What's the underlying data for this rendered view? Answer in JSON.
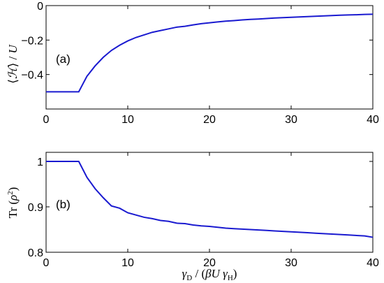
{
  "chart_data": [
    {
      "type": "line",
      "panel_label": "(a)",
      "ylabel": "⟨ℋ⟩ / U",
      "xlabel": "",
      "xlim": [
        0,
        40
      ],
      "ylim": [
        -0.6,
        0
      ],
      "xticks": [
        "0",
        "10",
        "20",
        "30",
        "40"
      ],
      "yticks": [
        "0",
        "−0.2",
        "−0.4"
      ],
      "ytick_values": [
        0,
        -0.2,
        -0.4
      ],
      "xtick_values": [
        0,
        10,
        20,
        30,
        40
      ],
      "color": "#1a1ad0",
      "x": [
        0,
        1,
        2,
        3,
        4,
        5,
        6,
        7,
        8,
        9,
        10,
        11,
        12,
        13,
        14,
        15,
        16,
        17,
        18,
        19,
        20,
        21,
        22,
        23,
        24,
        25,
        26,
        27,
        28,
        29,
        30,
        31,
        32,
        33,
        34,
        35,
        36,
        37,
        38,
        39,
        40
      ],
      "values": [
        -0.5,
        -0.5,
        -0.5,
        -0.5,
        -0.5,
        -0.41,
        -0.35,
        -0.3,
        -0.26,
        -0.23,
        -0.205,
        -0.185,
        -0.17,
        -0.155,
        -0.145,
        -0.135,
        -0.125,
        -0.12,
        -0.112,
        -0.105,
        -0.1,
        -0.095,
        -0.09,
        -0.087,
        -0.083,
        -0.08,
        -0.078,
        -0.075,
        -0.072,
        -0.07,
        -0.068,
        -0.066,
        -0.064,
        -0.062,
        -0.06,
        -0.058,
        -0.056,
        -0.054,
        -0.053,
        -0.051,
        -0.05
      ]
    },
    {
      "type": "line",
      "panel_label": "(b)",
      "ylabel": "Tr (ρ²)",
      "xlabel": "γ_D / (βUγ_H)",
      "xlim": [
        0,
        40
      ],
      "ylim": [
        0.8,
        1.02
      ],
      "xticks": [
        "0",
        "10",
        "20",
        "30",
        "40"
      ],
      "yticks": [
        "1",
        "0.9",
        "0.8"
      ],
      "ytick_values": [
        1,
        0.9,
        0.8
      ],
      "xtick_values": [
        0,
        10,
        20,
        30,
        40
      ],
      "color": "#1a1ad0",
      "x": [
        0,
        1,
        2,
        3,
        4,
        5,
        6,
        7,
        8,
        9,
        10,
        11,
        12,
        13,
        14,
        15,
        16,
        17,
        18,
        19,
        20,
        21,
        22,
        23,
        24,
        25,
        26,
        27,
        28,
        29,
        30,
        31,
        32,
        33,
        34,
        35,
        36,
        37,
        38,
        39,
        40
      ],
      "values": [
        1,
        1,
        1,
        1,
        1,
        0.965,
        0.94,
        0.92,
        0.902,
        0.897,
        0.887,
        0.882,
        0.877,
        0.874,
        0.87,
        0.868,
        0.864,
        0.863,
        0.86,
        0.858,
        0.857,
        0.855,
        0.853,
        0.852,
        0.851,
        0.85,
        0.849,
        0.848,
        0.847,
        0.846,
        0.845,
        0.844,
        0.843,
        0.842,
        0.841,
        0.84,
        0.839,
        0.838,
        0.837,
        0.836,
        0.833
      ]
    }
  ]
}
